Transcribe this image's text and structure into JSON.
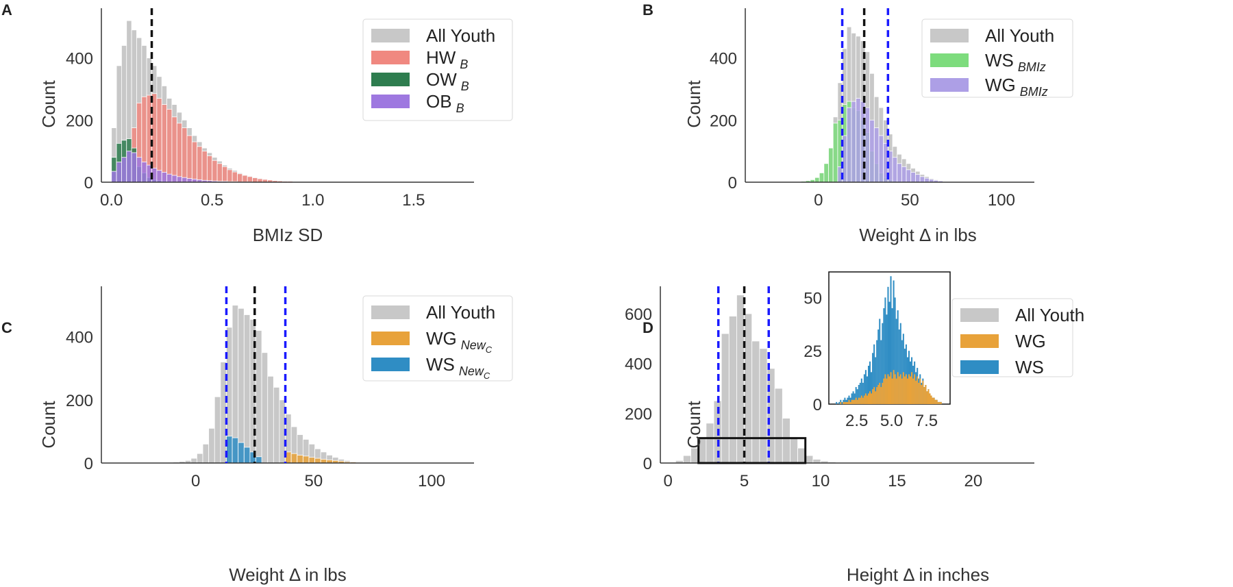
{
  "colors": {
    "all_youth": "#c8c8c8",
    "hw": "#f08880",
    "ow": "#2e7d4f",
    "ob": "#9e78e0",
    "ws_bmiz": "#7ddc7d",
    "wg_bmiz": "#ad9fe6",
    "wg_new": "#e8a23a",
    "ws_new": "#2f8dc4",
    "vline_mean": "#111111",
    "vline_bounds": "#1a1aff",
    "axis": "#333333"
  },
  "chart_data": [
    {
      "id": "A",
      "type": "bar",
      "panel_label": "A",
      "title": "",
      "xlabel": "BMIz SD",
      "ylabel": "Count",
      "xlim": [
        -0.05,
        1.8
      ],
      "ylim": [
        0,
        560
      ],
      "xticks": [
        "0.0",
        "0.5",
        "1.0",
        "1.5"
      ],
      "xtick_values": [
        0.0,
        0.5,
        1.0,
        1.5
      ],
      "yticks": [
        "0",
        "200",
        "400"
      ],
      "ytick_values": [
        0,
        200,
        400
      ],
      "bin_start": 0.0,
      "bin_width": 0.025,
      "vlines": [
        {
          "x": 0.2,
          "style": "mean"
        }
      ],
      "legend": {
        "position": "top-right",
        "entries": [
          "All Youth",
          "HW",
          "OW",
          "OB"
        ],
        "subscripts": [
          "",
          "B",
          "B",
          "B"
        ]
      },
      "series": [
        {
          "name": "All Youth",
          "color_key": "all_youth",
          "values": [
            175,
            375,
            440,
            520,
            490,
            465,
            440,
            400,
            375,
            340,
            310,
            270,
            250,
            225,
            200,
            175,
            150,
            130,
            110,
            95,
            80,
            68,
            55,
            45,
            38,
            30,
            24,
            20,
            16,
            13,
            10,
            8,
            6,
            5,
            4,
            3,
            3,
            2,
            2,
            1,
            1,
            1,
            1,
            0,
            0,
            0,
            0,
            0,
            0,
            0,
            0,
            0,
            0,
            0,
            0,
            0,
            0,
            0,
            0,
            0,
            0,
            0,
            0,
            0,
            0,
            0,
            0,
            0,
            0
          ]
        },
        {
          "name": "HW",
          "color_key": "hw",
          "values": [
            0,
            0,
            0,
            0,
            175,
            255,
            275,
            280,
            285,
            270,
            250,
            235,
            210,
            190,
            175,
            150,
            130,
            115,
            100,
            85,
            70,
            60,
            50,
            40,
            33,
            27,
            22,
            18,
            14,
            11,
            9,
            7,
            5,
            4,
            3,
            3,
            2,
            2,
            1,
            1,
            1,
            1,
            0,
            0,
            0,
            0,
            0,
            0,
            0,
            0,
            0,
            0,
            0,
            0,
            0,
            0,
            0,
            0,
            0,
            0,
            0,
            0,
            0,
            0,
            0,
            0,
            0,
            0,
            0
          ]
        },
        {
          "name": "OW",
          "color_key": "ow",
          "values": [
            80,
            125,
            135,
            140,
            110,
            50,
            30,
            15,
            8,
            5,
            3,
            2,
            1,
            0,
            0,
            0,
            0,
            0,
            0,
            0,
            0,
            0,
            0,
            0,
            0,
            0,
            0,
            0,
            0,
            0,
            0,
            0,
            0,
            0,
            0,
            0,
            0,
            0,
            0,
            0,
            0,
            0,
            0,
            0,
            0,
            0,
            0,
            0,
            0,
            0,
            0,
            0,
            0,
            0,
            0,
            0,
            0,
            0,
            0,
            0,
            0,
            0,
            0,
            0,
            0,
            0,
            0,
            0,
            0
          ]
        },
        {
          "name": "OB",
          "color_key": "ob",
          "values": [
            35,
            65,
            80,
            100,
            95,
            80,
            65,
            55,
            45,
            38,
            32,
            26,
            22,
            18,
            15,
            12,
            10,
            8,
            6,
            5,
            4,
            3,
            3,
            2,
            2,
            1,
            1,
            1,
            0,
            0,
            0,
            0,
            0,
            0,
            0,
            0,
            0,
            0,
            0,
            0,
            0,
            0,
            0,
            0,
            0,
            0,
            0,
            0,
            0,
            0,
            0,
            0,
            0,
            0,
            0,
            0,
            0,
            0,
            0,
            0,
            0,
            0,
            0,
            0,
            0,
            0,
            0,
            0,
            0
          ]
        }
      ]
    },
    {
      "id": "B",
      "type": "bar",
      "panel_label": "B",
      "title": "",
      "xlabel": "Weight Δ in lbs",
      "ylabel": "Count",
      "xlim": [
        -40,
        118
      ],
      "ylim": [
        0,
        560
      ],
      "xticks": [
        "0",
        "50",
        "100"
      ],
      "xtick_values": [
        0,
        50,
        100
      ],
      "yticks": [
        "0",
        "200",
        "400"
      ],
      "ytick_values": [
        0,
        200,
        400
      ],
      "bin_start": -12,
      "bin_width": 2.5,
      "vlines": [
        {
          "x": 13,
          "style": "bounds"
        },
        {
          "x": 25,
          "style": "mean"
        },
        {
          "x": 38,
          "style": "bounds"
        }
      ],
      "legend": {
        "position": "top-right",
        "entries": [
          "All Youth",
          "WS",
          "WG"
        ],
        "subscripts": [
          "",
          "BMIz",
          "BMIz"
        ]
      },
      "series": [
        {
          "name": "All Youth",
          "color_key": "all_youth",
          "values": [
            2,
            3,
            5,
            8,
            15,
            30,
            60,
            110,
            210,
            320,
            430,
            500,
            480,
            470,
            455,
            420,
            350,
            275,
            240,
            200,
            155,
            115,
            90,
            75,
            60,
            45,
            35,
            25,
            18,
            12,
            8,
            5,
            3,
            2,
            1,
            1,
            0,
            0,
            0,
            0,
            0,
            0,
            0,
            0,
            0,
            0,
            0,
            0,
            0,
            0,
            0,
            0
          ]
        },
        {
          "name": "WS",
          "color_key": "ws_bmiz",
          "values": [
            1,
            3,
            5,
            8,
            15,
            30,
            60,
            110,
            190,
            200,
            250,
            260,
            240,
            230,
            200,
            160,
            100,
            60,
            30,
            15,
            8,
            4,
            2,
            1,
            0,
            0,
            0,
            0,
            0,
            0,
            0,
            0,
            0,
            0,
            0,
            0,
            0,
            0,
            0,
            0,
            0,
            0,
            0,
            0,
            0,
            0,
            0,
            0,
            0,
            0,
            0,
            0
          ]
        },
        {
          "name": "WG",
          "color_key": "wg_bmiz",
          "values": [
            0,
            0,
            0,
            0,
            0,
            0,
            0,
            0,
            0,
            50,
            150,
            240,
            260,
            270,
            260,
            240,
            200,
            175,
            150,
            125,
            100,
            80,
            60,
            50,
            40,
            32,
            25,
            18,
            13,
            9,
            6,
            4,
            2,
            1,
            1,
            0,
            0,
            0,
            0,
            0,
            0,
            0,
            0,
            0,
            0,
            0,
            0,
            0,
            0,
            0,
            0,
            0
          ]
        }
      ]
    },
    {
      "id": "C",
      "type": "bar",
      "panel_label": "C",
      "title": "",
      "xlabel": "Weight Δ in lbs",
      "ylabel": "Count",
      "xlim": [
        -40,
        118
      ],
      "ylim": [
        0,
        560
      ],
      "xticks": [
        "0",
        "50",
        "100"
      ],
      "xtick_values": [
        0,
        50,
        100
      ],
      "yticks": [
        "0",
        "200",
        "400"
      ],
      "ytick_values": [
        0,
        200,
        400
      ],
      "bin_start": -12,
      "bin_width": 2.5,
      "vlines": [
        {
          "x": 13,
          "style": "bounds"
        },
        {
          "x": 25,
          "style": "mean"
        },
        {
          "x": 38,
          "style": "bounds"
        }
      ],
      "legend": {
        "position": "top-right",
        "entries": [
          "All Youth",
          "WG",
          "WS"
        ],
        "subscripts": [
          "",
          "New",
          "New"
        ],
        "subsubscripts": [
          "",
          "C",
          "C"
        ]
      },
      "series": [
        {
          "name": "All Youth",
          "color_key": "all_youth",
          "values": [
            2,
            3,
            5,
            8,
            15,
            30,
            60,
            110,
            210,
            320,
            430,
            500,
            490,
            470,
            455,
            420,
            350,
            275,
            240,
            200,
            155,
            115,
            90,
            75,
            60,
            45,
            35,
            25,
            18,
            12,
            8,
            5,
            3,
            2,
            1,
            1,
            0,
            0,
            0,
            0,
            0,
            0,
            0,
            0,
            0,
            0,
            0,
            0,
            0,
            0,
            0,
            0
          ]
        },
        {
          "name": "WS",
          "color_key": "ws_new",
          "values": [
            0,
            0,
            0,
            0,
            0,
            0,
            0,
            0,
            0,
            0,
            85,
            80,
            65,
            50,
            35,
            20,
            0,
            0,
            0,
            0,
            0,
            0,
            0,
            0,
            0,
            0,
            0,
            0,
            0,
            0,
            0,
            0,
            0,
            0,
            0,
            0,
            0,
            0,
            0,
            0,
            0,
            0,
            0,
            0,
            0,
            0,
            0,
            0,
            0,
            0,
            0,
            0
          ]
        },
        {
          "name": "WG",
          "color_key": "wg_new",
          "values": [
            0,
            0,
            0,
            0,
            0,
            0,
            0,
            0,
            0,
            0,
            0,
            0,
            0,
            0,
            0,
            0,
            0,
            0,
            0,
            0,
            35,
            30,
            25,
            22,
            18,
            15,
            12,
            10,
            8,
            6,
            4,
            3,
            2,
            1,
            1,
            0,
            0,
            0,
            0,
            0,
            0,
            0,
            0,
            0,
            0,
            0,
            0,
            0,
            0,
            0,
            0,
            0
          ]
        }
      ]
    },
    {
      "id": "D",
      "type": "bar",
      "panel_label": "D",
      "title": "",
      "xlabel": "Height Δ in inches",
      "ylabel": "Count",
      "xlim": [
        -0.5,
        24
      ],
      "ylim": [
        0,
        710
      ],
      "xticks": [
        "0",
        "5",
        "10",
        "15",
        "20"
      ],
      "xtick_values": [
        0,
        5,
        10,
        15,
        20
      ],
      "yticks": [
        "0",
        "200",
        "400",
        "600"
      ],
      "ytick_values": [
        0,
        200,
        400,
        600
      ],
      "bin_start": 0.5,
      "bin_width": 0.5,
      "vlines": [
        {
          "x": 3.3,
          "style": "bounds"
        },
        {
          "x": 5.0,
          "style": "mean"
        },
        {
          "x": 6.6,
          "style": "bounds"
        }
      ],
      "zoom_box": {
        "x0": 2.0,
        "x1": 9.0,
        "y0": 0,
        "y1": 100
      },
      "legend": {
        "position": "top-right",
        "entries": [
          "All Youth",
          "WG",
          "WS"
        ],
        "subscripts": [
          "",
          "",
          ""
        ]
      },
      "series": [
        {
          "name": "All Youth",
          "color_key": "all_youth",
          "values": [
            10,
            30,
            60,
            100,
            160,
            250,
            520,
            590,
            675,
            600,
            490,
            460,
            380,
            300,
            180,
            100,
            60,
            30,
            15,
            8,
            4,
            2,
            1,
            0,
            0,
            0,
            0,
            0,
            0,
            2,
            0,
            0,
            0,
            0,
            0,
            0,
            0,
            0,
            0,
            0,
            0,
            0,
            0
          ]
        }
      ],
      "inset": {
        "xlim": [
          0.5,
          9.2
        ],
        "ylim": [
          0,
          62
        ],
        "xticks": [
          "2.5",
          "5.0",
          "7.5"
        ],
        "xtick_values": [
          2.5,
          5.0,
          7.5
        ],
        "yticks": [
          "0",
          "25",
          "50"
        ],
        "ytick_values": [
          0,
          25,
          50
        ],
        "bin_start": 1.0,
        "bin_width": 0.1,
        "series": [
          {
            "name": "WS",
            "color_key": "ws_new",
            "values": [
              1,
              0,
              1,
              2,
              1,
              2,
              3,
              2,
              3,
              4,
              3,
              5,
              6,
              5,
              8,
              7,
              9,
              10,
              12,
              10,
              14,
              16,
              13,
              18,
              20,
              15,
              24,
              28,
              22,
              30,
              35,
              40,
              30,
              38,
              45,
              50,
              42,
              55,
              48,
              60,
              45,
              58,
              50,
              40,
              44,
              35,
              38,
              30,
              33,
              26,
              28,
              22,
              25,
              20,
              22,
              18,
              20,
              15,
              17,
              12,
              14,
              10,
              12,
              8,
              9,
              6,
              7,
              5,
              4,
              3,
              3,
              2,
              2,
              1,
              1,
              1
            ]
          },
          {
            "name": "WG",
            "color_key": "wg_new",
            "values": [
              0,
              0,
              0,
              1,
              0,
              1,
              1,
              1,
              1,
              2,
              1,
              2,
              2,
              2,
              3,
              2,
              3,
              3,
              4,
              3,
              4,
              5,
              4,
              5,
              6,
              5,
              7,
              8,
              6,
              8,
              9,
              10,
              8,
              10,
              12,
              14,
              12,
              14,
              13,
              15,
              12,
              16,
              14,
              12,
              15,
              13,
              14,
              12,
              15,
              13,
              14,
              12,
              14,
              13,
              15,
              12,
              14,
              11,
              13,
              10,
              12,
              9,
              11,
              8,
              9,
              6,
              7,
              5,
              4,
              3,
              3,
              2,
              2,
              1,
              1,
              1
            ]
          }
        ]
      }
    }
  ]
}
